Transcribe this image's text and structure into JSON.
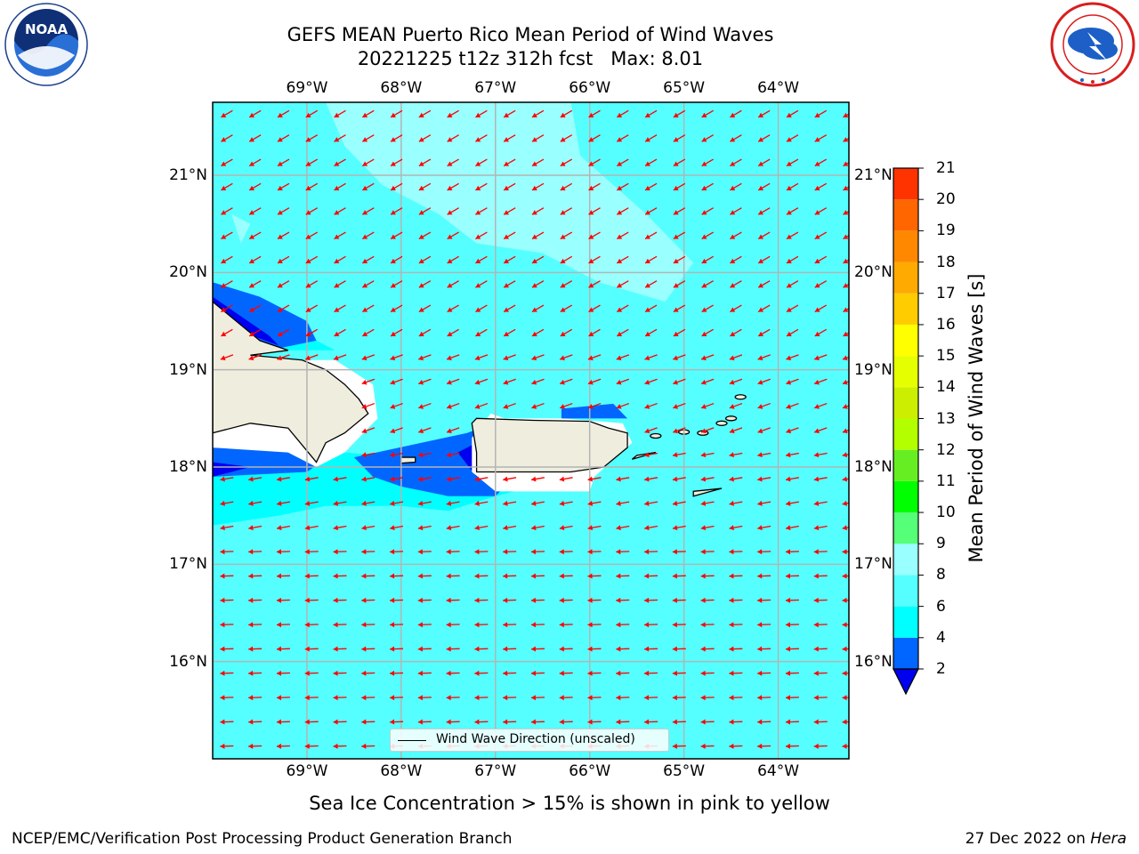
{
  "header": {
    "title_line1": "GEFS MEAN Puerto Rico Mean Period of Wind Waves",
    "title_line2": "20221225 t12z 312h fcst   Max: 8.01"
  },
  "logos": {
    "noaa": {
      "name": "NOAA",
      "icon": "noaa-logo-icon"
    },
    "nws": {
      "icon": "national-weather-service-logo-icon"
    }
  },
  "map": {
    "projection": "lat-lon",
    "lon_range": [
      -70.0,
      -63.25
    ],
    "lat_range": [
      15.0,
      21.75
    ],
    "lon_ticks": [
      "69°W",
      "68°W",
      "67°W",
      "66°W",
      "65°W",
      "64°W"
    ],
    "lat_ticks": [
      "16°N",
      "17°N",
      "18°N",
      "19°N",
      "20°N",
      "21°N"
    ],
    "grid": true,
    "land_color": "#efedde",
    "arrow_color": "#ff0000"
  },
  "chart_data": {
    "type": "heatmap",
    "title": "GEFS MEAN Puerto Rico Mean Period of Wind Waves",
    "subtitle": "20221225 t12z 312h fcst   Max: 8.01",
    "max_value": 8.01,
    "colorbar": {
      "label": "Mean Period of Wind Waves [s]",
      "ticks": [
        2,
        4,
        6,
        8,
        9,
        10,
        11,
        12,
        13,
        14,
        15,
        16,
        17,
        18,
        19,
        20,
        21
      ],
      "colors": [
        "#0066ff",
        "#00ffff",
        "#55ffff",
        "#99ffff",
        "#55ff77",
        "#00ff00",
        "#66ee22",
        "#b3ff00",
        "#ccee00",
        "#e6ff00",
        "#ffff00",
        "#ffcc00",
        "#ffaa00",
        "#ff8800",
        "#ff6600",
        "#ff3300"
      ],
      "extend_min_color": "#0000ee"
    },
    "fields": {
      "open_water_period_range_s": [
        6,
        8
      ],
      "near_shore_min_period_s": 2
    }
  },
  "legend": {
    "label": "Wind Wave Direction (unscaled)"
  },
  "caption": "Sea Ice Concentration > 15% is shown in pink to yellow",
  "footer": {
    "left": "NCEP/EMC/Verification Post Processing Product Generation Branch",
    "right_prefix": "27 Dec 2022 on ",
    "right_host": "Hera"
  }
}
